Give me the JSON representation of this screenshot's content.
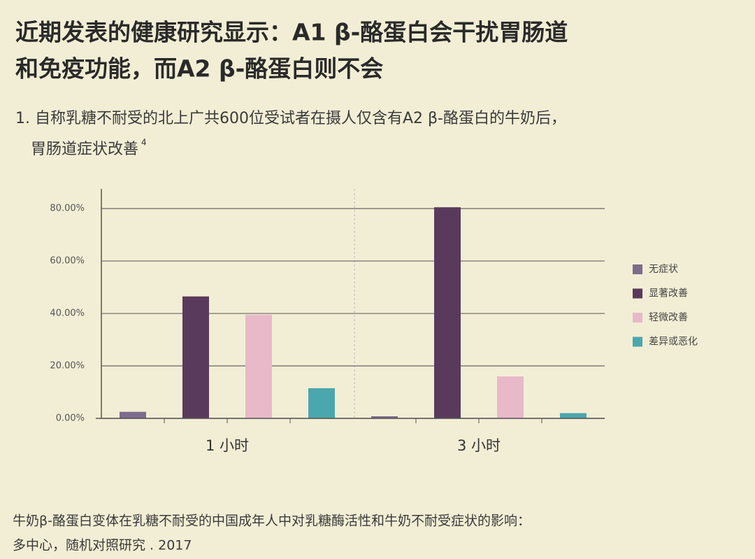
{
  "chart_data": {
    "type": "bar",
    "title": [
      "近期发表的健康研究显示：A1 β-酪蛋白会干扰胃肠道",
      "和免疫功能，而A2 β-酪蛋白则不会"
    ],
    "subtitle": [
      "1. 自称乳糖不耐受的北上广共600位受试者在摄人仅含有A2 β-酪蛋白的牛奶后，",
      "胃肠道症状改善"
    ],
    "subtitle_note": "4",
    "source": [
      "牛奶β-酪蛋白变体在乳糖不耐受的中国成年人中对乳糖酶活性和牛奶不耐受症状的影响：",
      "多中心，随机对照研究 . 2017"
    ],
    "categories": [
      "1 小时",
      "3 小时"
    ],
    "series": [
      {
        "name": "无症状",
        "color": "#7d6b8c",
        "values": [
          2.5,
          0.8
        ]
      },
      {
        "name": "显著改善",
        "color": "#5a3a5c",
        "values": [
          46.5,
          80.5
        ]
      },
      {
        "name": "轻微改善",
        "color": "#e8b9c9",
        "values": [
          39.5,
          16
        ]
      },
      {
        "name": "差异或恶化",
        "color": "#4ba7ae",
        "values": [
          11.5,
          2
        ]
      }
    ],
    "ylim": [
      0,
      87.5
    ],
    "yticks": [
      {
        "value": 0,
        "label": "0.00%"
      },
      {
        "value": 20,
        "label": "20.00%"
      },
      {
        "value": 40,
        "label": "40.00%"
      },
      {
        "value": 60,
        "label": "60.00%"
      },
      {
        "value": 80,
        "label": "80.00%"
      }
    ],
    "grid": true,
    "legend": "right"
  }
}
